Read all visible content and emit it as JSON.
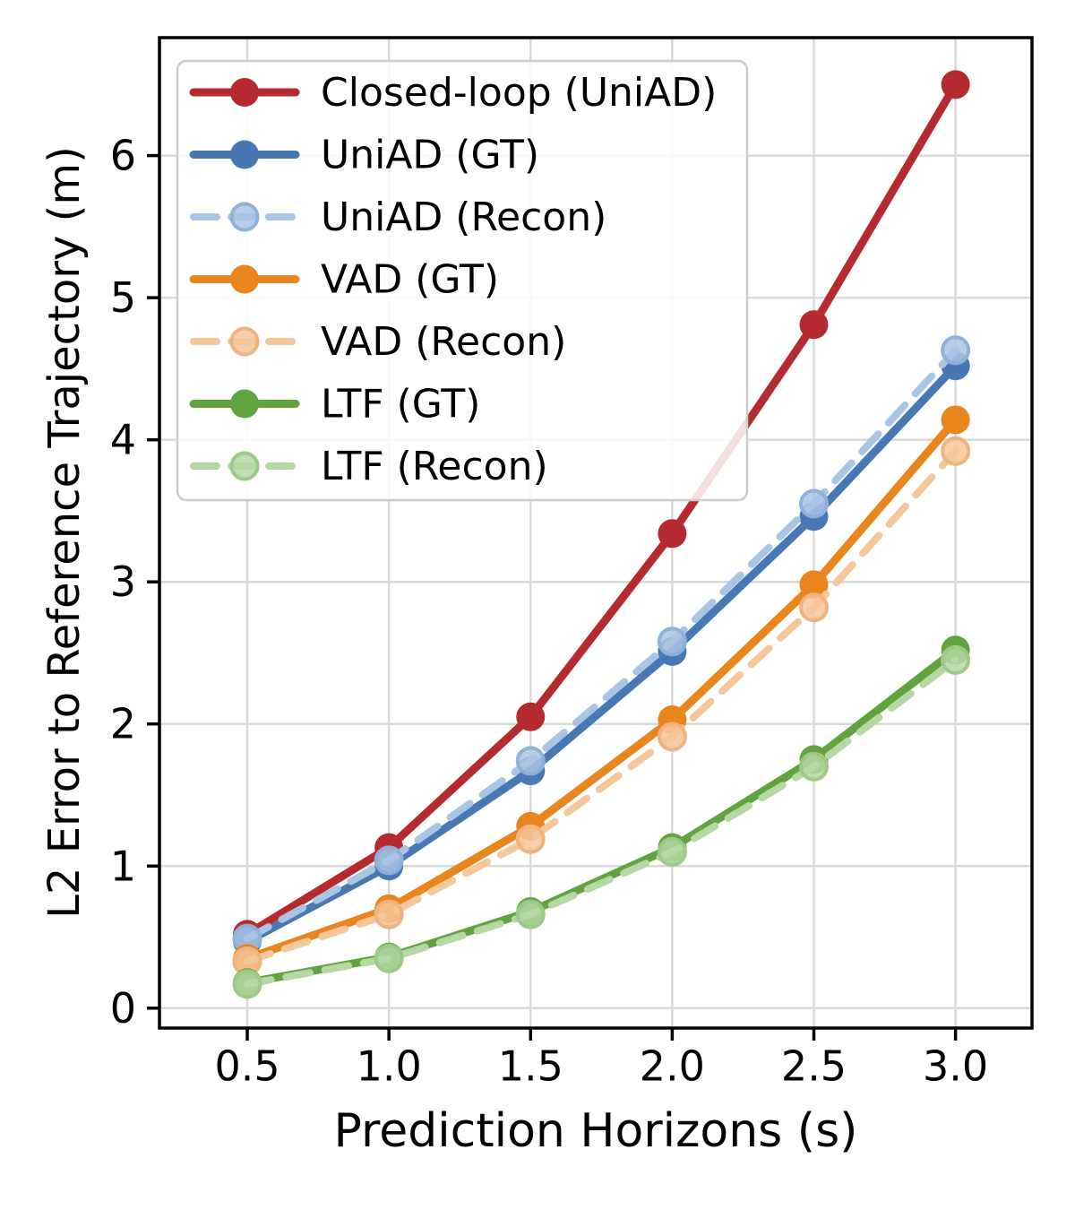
{
  "figure": {
    "xlabel": "Prediction Horizons (s)",
    "ylabel": "L2 Error to Reference Trajectory (m)"
  },
  "chart_data": {
    "type": "line",
    "title": "",
    "xlabel": "Prediction Horizons (s)",
    "ylabel": "L2 Error to Reference Trajectory (m)",
    "x": [
      0.5,
      1.0,
      1.5,
      2.0,
      2.5,
      3.0
    ],
    "x_tick_labels": [
      "0.5",
      "1.0",
      "1.5",
      "2.0",
      "2.5",
      "3.0"
    ],
    "y_ticks": [
      0,
      1,
      2,
      3,
      4,
      5,
      6
    ],
    "y_tick_labels": [
      "0",
      "1",
      "2",
      "3",
      "4",
      "5",
      "6"
    ],
    "xlim": [
      0.19,
      3.27
    ],
    "ylim": [
      -0.14,
      6.83
    ],
    "grid": true,
    "legend_position": "upper left",
    "series": [
      {
        "name": "Closed-loop (UniAD)",
        "color": "#b52a2f",
        "style": "solid",
        "values": [
          0.52,
          1.13,
          2.05,
          3.34,
          4.81,
          6.5
        ]
      },
      {
        "name": "UniAD (GT)",
        "color": "#4878b4",
        "style": "solid",
        "values": [
          0.47,
          1.0,
          1.67,
          2.51,
          3.46,
          4.52
        ]
      },
      {
        "name": "UniAD (Recon)",
        "color": "#aac4e4",
        "edge_color": "#8fb1d9",
        "style": "dashed",
        "values": [
          0.49,
          1.04,
          1.74,
          2.58,
          3.55,
          4.63
        ]
      },
      {
        "name": "VAD (GT)",
        "color": "#e8851d",
        "style": "solid",
        "values": [
          0.35,
          0.7,
          1.28,
          2.03,
          2.98,
          4.14
        ]
      },
      {
        "name": "VAD (Recon)",
        "color": "#f6c79b",
        "edge_color": "#f0b27e",
        "style": "dashed",
        "values": [
          0.33,
          0.66,
          1.19,
          1.91,
          2.82,
          3.92
        ]
      },
      {
        "name": "LTF (GT)",
        "color": "#61a43f",
        "style": "solid",
        "values": [
          0.18,
          0.36,
          0.68,
          1.13,
          1.75,
          2.52
        ]
      },
      {
        "name": "LTF (Recon)",
        "color": "#b5d8a5",
        "edge_color": "#9cc987",
        "style": "dashed",
        "values": [
          0.17,
          0.35,
          0.66,
          1.1,
          1.7,
          2.45
        ]
      }
    ],
    "colors": {
      "grid": "#d9d9d9",
      "spine": "#000000",
      "text": "#000000",
      "legend_border": "#cccccc",
      "background": "#ffffff"
    }
  }
}
